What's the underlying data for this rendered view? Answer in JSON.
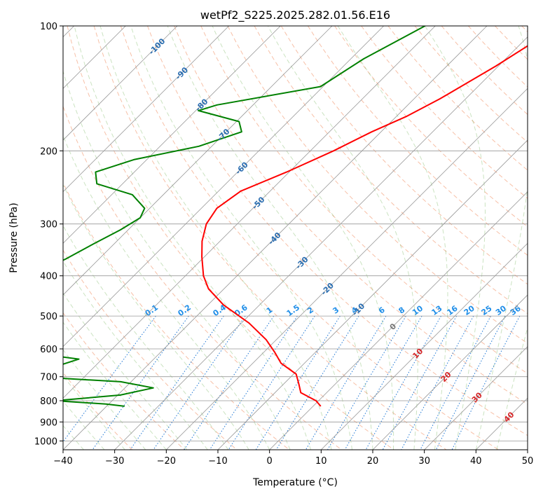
{
  "chart_data": {
    "type": "line",
    "title": "wetPf2_S225.2025.282.01.56.E16",
    "xlabel": "Temperature (°C)",
    "ylabel": "Pressure (hPa)",
    "xlim": [
      -40,
      50
    ],
    "ylim": [
      1050,
      100
    ],
    "y_scale": "log",
    "grid": true,
    "x_ticks": [
      -40,
      -30,
      -20,
      -10,
      0,
      10,
      20,
      30,
      40,
      50
    ],
    "y_ticks": [
      100,
      200,
      300,
      400,
      500,
      600,
      700,
      800,
      900,
      1000
    ],
    "dry_adiabat_labels": [
      -100,
      -90,
      -80,
      -70,
      -60,
      -50,
      -40,
      -30,
      -20,
      -10
    ],
    "moist_adiabat_labels": [
      0,
      10,
      20,
      30,
      40
    ],
    "mixing_ratio_labels": [
      "0.1",
      "0.2",
      "0.4",
      "0.6",
      "1",
      "1.5",
      "2",
      "3",
      "4",
      "6",
      "8",
      "10",
      "13",
      "16",
      "20",
      "25",
      "30",
      "36"
    ],
    "series": [
      {
        "color": "#ff0000",
        "points": [
          [
            -26.0,
            100
          ],
          [
            -30.5,
            125
          ],
          [
            -35.0,
            150
          ],
          [
            -38.0,
            165
          ],
          [
            -41.8,
            180
          ],
          [
            -45.5,
            200
          ],
          [
            -50.5,
            225
          ],
          [
            -55.7,
            250
          ],
          [
            -57.0,
            275
          ],
          [
            -56.0,
            300
          ],
          [
            -53.5,
            330
          ],
          [
            -50.5,
            360
          ],
          [
            -46.5,
            400
          ],
          [
            -43.0,
            430
          ],
          [
            -37.0,
            470
          ],
          [
            -28.5,
            520
          ],
          [
            -22.0,
            570
          ],
          [
            -18.0,
            610
          ],
          [
            -14.5,
            650
          ],
          [
            -9.5,
            690
          ],
          [
            -7.0,
            730
          ],
          [
            -5.0,
            765
          ],
          [
            -0.5,
            800
          ],
          [
            1.5,
            825
          ]
        ]
      },
      {
        "color": "#008000",
        "points": [
          [
            -52.0,
            100
          ],
          [
            -57.5,
            120
          ],
          [
            -60.5,
            140
          ],
          [
            -77.0,
            155
          ],
          [
            -79.5,
            160
          ],
          [
            -69.5,
            170
          ],
          [
            -67.0,
            180
          ],
          [
            -72.5,
            195
          ],
          [
            -82.5,
            210
          ],
          [
            -87.5,
            225
          ],
          [
            -85.0,
            240
          ],
          [
            -76.0,
            255
          ],
          [
            -71.0,
            275
          ],
          [
            -70.0,
            290
          ],
          [
            -71.5,
            310
          ],
          [
            -74.0,
            335
          ],
          [
            -76.5,
            365
          ],
          [
            -79.5,
            390
          ],
          [
            -84.5,
            420
          ],
          [
            -80.0,
            440
          ],
          [
            -75.5,
            460
          ],
          [
            -69.5,
            490
          ],
          [
            -67.5,
            520
          ],
          [
            -68.0,
            560
          ],
          [
            -68.5,
            590
          ],
          [
            -66.5,
            610
          ],
          [
            -54.5,
            635
          ],
          [
            -58.5,
            670
          ],
          [
            -61.0,
            690
          ],
          [
            -55.5,
            705
          ],
          [
            -42.0,
            720
          ],
          [
            -34.5,
            745
          ],
          [
            -39.5,
            775
          ],
          [
            -51.0,
            800
          ],
          [
            -40.5,
            815
          ],
          [
            -36.5,
            825
          ]
        ]
      }
    ]
  }
}
